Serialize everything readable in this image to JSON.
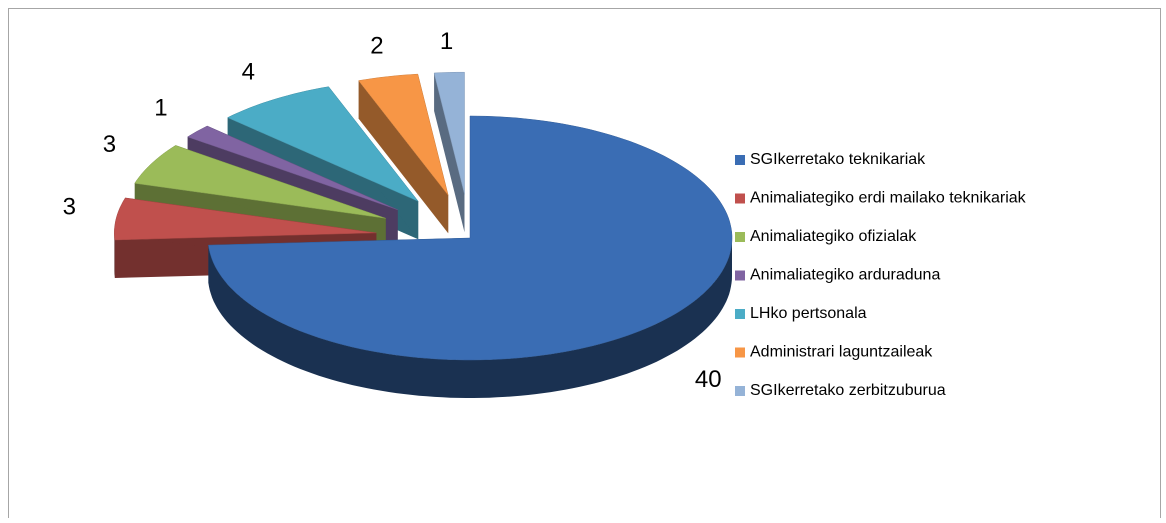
{
  "chart_data": {
    "type": "pie3d",
    "categories": [
      "SGIkerretako teknikariak",
      "Animaliategiko erdi mailako teknikariak",
      "Animaliategiko ofizialak",
      "Animaliategiko arduraduna",
      "LHko pertsonala",
      "Administrari laguntzaileak",
      "SGIkerretako zerbitzuburua"
    ],
    "values": [
      40,
      3,
      3,
      1,
      4,
      2,
      1
    ],
    "colors": [
      "#3a6db4",
      "#c0504d",
      "#9bbb59",
      "#8064a2",
      "#4bacc6",
      "#f79646",
      "#95b3d7"
    ],
    "legend": "right"
  }
}
